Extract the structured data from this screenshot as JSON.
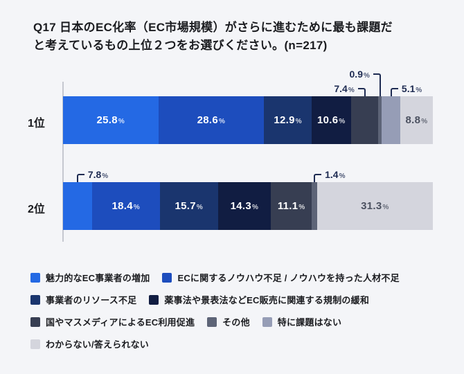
{
  "chart_data": {
    "type": "bar",
    "stacked": true,
    "orientation": "horizontal",
    "unit": "%",
    "sample_size": 217,
    "title": "Q17 日本のEC化率（EC市場規模）がさらに進むために最も課題だと考えているもの上位２つをお選びください。(n=217)",
    "title_lines": [
      "Q17 日本のEC化率（EC市場規模）がさらに進むために最も課題だ",
      "と考えているもの上位２つをお選びください。(n=217)"
    ],
    "categories": [
      "1位",
      "2位"
    ],
    "legend_position": "bottom",
    "legend": [
      {
        "label": "魅力的なEC事業者の増加",
        "color": "#2469E4"
      },
      {
        "label": "ECに関するノウハウ不足 / ノウハウを持った人材不足",
        "color": "#1D4DBD"
      },
      {
        "label": "事業者のリソース不足",
        "color": "#1A356E"
      },
      {
        "label": "薬事法や景表法などEC販売に関連する規制の緩和",
        "color": "#111D42"
      },
      {
        "label": "国やマスメディアによるEC利用促進",
        "color": "#373E52"
      },
      {
        "label": "その他",
        "color": "#5D6477"
      },
      {
        "label": "特に課題はない",
        "color": "#969DB6"
      },
      {
        "label": "わからない/答えられない",
        "color": "#D4D5DD"
      }
    ],
    "rows": [
      {
        "category": "1位",
        "segments": [
          {
            "value": 25.8,
            "label": "inside"
          },
          {
            "value": 28.6,
            "label": "inside"
          },
          {
            "value": 12.9,
            "label": "inside"
          },
          {
            "value": 10.6,
            "label": "inside"
          },
          {
            "value": 7.4,
            "label": "callout",
            "level": 1,
            "text_side": "left"
          },
          {
            "value": 0.9,
            "label": "callout",
            "level": 2,
            "text_side": "left"
          },
          {
            "value": 5.1,
            "label": "callout",
            "level": 1,
            "text_side": "right"
          },
          {
            "value": 8.8,
            "label": "inside"
          }
        ]
      },
      {
        "category": "2位",
        "segments": [
          {
            "value": 7.8,
            "label": "callout",
            "level": 1,
            "text_side": "right"
          },
          {
            "value": 18.4,
            "label": "inside"
          },
          {
            "value": 15.7,
            "label": "inside"
          },
          {
            "value": 14.3,
            "label": "inside"
          },
          {
            "value": 11.1,
            "label": "inside"
          },
          {
            "value": 1.4,
            "label": "callout",
            "level": 1,
            "text_side": "right"
          },
          {
            "value": 0,
            "label": "none"
          },
          {
            "value": 31.3,
            "label": "inside"
          }
        ]
      }
    ],
    "colors": {
      "background": "#F4F5F8",
      "callout_ink": "#1E2B52",
      "light_segment_text": "#4B5160",
      "axis": "#C5C8D0"
    }
  }
}
